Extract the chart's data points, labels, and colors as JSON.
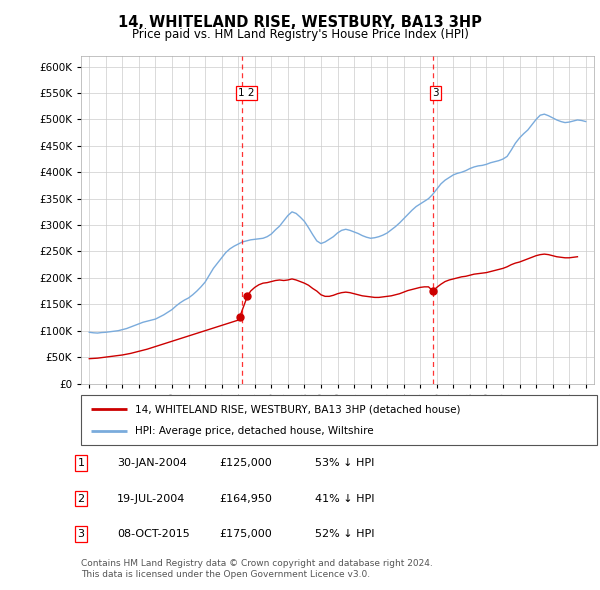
{
  "title": "14, WHITELAND RISE, WESTBURY, BA13 3HP",
  "subtitle": "Price paid vs. HM Land Registry's House Price Index (HPI)",
  "legend_line1": "14, WHITELAND RISE, WESTBURY, BA13 3HP (detached house)",
  "legend_line2": "HPI: Average price, detached house, Wiltshire",
  "footer1": "Contains HM Land Registry data © Crown copyright and database right 2024.",
  "footer2": "This data is licensed under the Open Government Licence v3.0.",
  "table": [
    {
      "num": "1",
      "date": "30-JAN-2004",
      "price": "£125,000",
      "pct": "53% ↓ HPI"
    },
    {
      "num": "2",
      "date": "19-JUL-2004",
      "price": "£164,950",
      "pct": "41% ↓ HPI"
    },
    {
      "num": "3",
      "date": "08-OCT-2015",
      "price": "£175,000",
      "pct": "52% ↓ HPI"
    }
  ],
  "hpi_color": "#7aabdc",
  "price_color": "#cc0000",
  "marker1_x": 2004.08,
  "marker1_y": 125000,
  "marker2_x": 2004.55,
  "marker2_y": 164950,
  "marker3_x": 2015.77,
  "marker3_y": 175000,
  "vline1_x": 2004.25,
  "vline2_x": 2015.8,
  "ylim": [
    0,
    620000
  ],
  "yticks": [
    0,
    50000,
    100000,
    150000,
    200000,
    250000,
    300000,
    350000,
    400000,
    450000,
    500000,
    550000,
    600000
  ],
  "xlim_min": 1994.5,
  "xlim_max": 2025.5,
  "hpi_data": [
    [
      1995.0,
      97000
    ],
    [
      1995.25,
      96000
    ],
    [
      1995.5,
      95500
    ],
    [
      1995.75,
      96500
    ],
    [
      1996.0,
      97000
    ],
    [
      1996.25,
      98000
    ],
    [
      1996.5,
      99000
    ],
    [
      1996.75,
      100000
    ],
    [
      1997.0,
      102000
    ],
    [
      1997.25,
      104000
    ],
    [
      1997.5,
      107000
    ],
    [
      1997.75,
      110000
    ],
    [
      1998.0,
      113000
    ],
    [
      1998.25,
      116000
    ],
    [
      1998.5,
      118000
    ],
    [
      1998.75,
      120000
    ],
    [
      1999.0,
      122000
    ],
    [
      1999.25,
      126000
    ],
    [
      1999.5,
      130000
    ],
    [
      1999.75,
      135000
    ],
    [
      2000.0,
      140000
    ],
    [
      2000.25,
      147000
    ],
    [
      2000.5,
      153000
    ],
    [
      2000.75,
      158000
    ],
    [
      2001.0,
      162000
    ],
    [
      2001.25,
      168000
    ],
    [
      2001.5,
      175000
    ],
    [
      2001.75,
      183000
    ],
    [
      2002.0,
      192000
    ],
    [
      2002.25,
      205000
    ],
    [
      2002.5,
      218000
    ],
    [
      2002.75,
      228000
    ],
    [
      2003.0,
      238000
    ],
    [
      2003.25,
      248000
    ],
    [
      2003.5,
      255000
    ],
    [
      2003.75,
      260000
    ],
    [
      2004.0,
      264000
    ],
    [
      2004.25,
      268000
    ],
    [
      2004.5,
      270000
    ],
    [
      2004.75,
      272000
    ],
    [
      2005.0,
      273000
    ],
    [
      2005.25,
      274000
    ],
    [
      2005.5,
      275000
    ],
    [
      2005.75,
      278000
    ],
    [
      2006.0,
      283000
    ],
    [
      2006.25,
      291000
    ],
    [
      2006.5,
      298000
    ],
    [
      2006.75,
      308000
    ],
    [
      2007.0,
      318000
    ],
    [
      2007.25,
      325000
    ],
    [
      2007.5,
      322000
    ],
    [
      2007.75,
      315000
    ],
    [
      2008.0,
      307000
    ],
    [
      2008.25,
      295000
    ],
    [
      2008.5,
      282000
    ],
    [
      2008.75,
      270000
    ],
    [
      2009.0,
      265000
    ],
    [
      2009.25,
      268000
    ],
    [
      2009.5,
      273000
    ],
    [
      2009.75,
      278000
    ],
    [
      2010.0,
      285000
    ],
    [
      2010.25,
      290000
    ],
    [
      2010.5,
      292000
    ],
    [
      2010.75,
      290000
    ],
    [
      2011.0,
      287000
    ],
    [
      2011.25,
      284000
    ],
    [
      2011.5,
      280000
    ],
    [
      2011.75,
      277000
    ],
    [
      2012.0,
      275000
    ],
    [
      2012.25,
      276000
    ],
    [
      2012.5,
      278000
    ],
    [
      2012.75,
      281000
    ],
    [
      2013.0,
      285000
    ],
    [
      2013.25,
      291000
    ],
    [
      2013.5,
      297000
    ],
    [
      2013.75,
      304000
    ],
    [
      2014.0,
      312000
    ],
    [
      2014.25,
      320000
    ],
    [
      2014.5,
      328000
    ],
    [
      2014.75,
      335000
    ],
    [
      2015.0,
      340000
    ],
    [
      2015.25,
      345000
    ],
    [
      2015.5,
      350000
    ],
    [
      2015.75,
      358000
    ],
    [
      2016.0,
      368000
    ],
    [
      2016.25,
      378000
    ],
    [
      2016.5,
      385000
    ],
    [
      2016.75,
      390000
    ],
    [
      2017.0,
      395000
    ],
    [
      2017.25,
      398000
    ],
    [
      2017.5,
      400000
    ],
    [
      2017.75,
      403000
    ],
    [
      2018.0,
      407000
    ],
    [
      2018.25,
      410000
    ],
    [
      2018.5,
      412000
    ],
    [
      2018.75,
      413000
    ],
    [
      2019.0,
      415000
    ],
    [
      2019.25,
      418000
    ],
    [
      2019.5,
      420000
    ],
    [
      2019.75,
      422000
    ],
    [
      2020.0,
      425000
    ],
    [
      2020.25,
      430000
    ],
    [
      2020.5,
      442000
    ],
    [
      2020.75,
      455000
    ],
    [
      2021.0,
      465000
    ],
    [
      2021.25,
      473000
    ],
    [
      2021.5,
      480000
    ],
    [
      2021.75,
      490000
    ],
    [
      2022.0,
      500000
    ],
    [
      2022.25,
      508000
    ],
    [
      2022.5,
      510000
    ],
    [
      2022.75,
      507000
    ],
    [
      2023.0,
      503000
    ],
    [
      2023.25,
      499000
    ],
    [
      2023.5,
      496000
    ],
    [
      2023.75,
      494000
    ],
    [
      2024.0,
      495000
    ],
    [
      2024.25,
      497000
    ],
    [
      2024.5,
      499000
    ],
    [
      2024.75,
      498000
    ],
    [
      2025.0,
      496000
    ]
  ],
  "price_data": [
    [
      1995.0,
      47000
    ],
    [
      1995.5,
      48000
    ],
    [
      1996.0,
      50000
    ],
    [
      1996.5,
      52000
    ],
    [
      1997.0,
      54000
    ],
    [
      1997.5,
      57000
    ],
    [
      1998.0,
      61000
    ],
    [
      1998.5,
      65000
    ],
    [
      1999.0,
      70000
    ],
    [
      1999.5,
      75000
    ],
    [
      2000.0,
      80000
    ],
    [
      2000.5,
      85000
    ],
    [
      2001.0,
      90000
    ],
    [
      2001.5,
      95000
    ],
    [
      2002.0,
      100000
    ],
    [
      2002.5,
      105000
    ],
    [
      2003.0,
      110000
    ],
    [
      2003.5,
      115000
    ],
    [
      2004.0,
      120000
    ],
    [
      2004.08,
      125000
    ],
    [
      2004.55,
      164950
    ],
    [
      2004.75,
      175000
    ],
    [
      2005.0,
      182000
    ],
    [
      2005.25,
      187000
    ],
    [
      2005.5,
      190000
    ],
    [
      2005.75,
      191000
    ],
    [
      2006.0,
      193000
    ],
    [
      2006.25,
      195000
    ],
    [
      2006.5,
      196000
    ],
    [
      2006.75,
      195000
    ],
    [
      2007.0,
      196000
    ],
    [
      2007.25,
      198000
    ],
    [
      2007.5,
      196000
    ],
    [
      2007.75,
      193000
    ],
    [
      2008.0,
      190000
    ],
    [
      2008.25,
      186000
    ],
    [
      2008.5,
      180000
    ],
    [
      2008.75,
      175000
    ],
    [
      2009.0,
      168000
    ],
    [
      2009.25,
      165000
    ],
    [
      2009.5,
      165000
    ],
    [
      2009.75,
      167000
    ],
    [
      2010.0,
      170000
    ],
    [
      2010.25,
      172000
    ],
    [
      2010.5,
      173000
    ],
    [
      2010.75,
      172000
    ],
    [
      2011.0,
      170000
    ],
    [
      2011.25,
      168000
    ],
    [
      2011.5,
      166000
    ],
    [
      2011.75,
      165000
    ],
    [
      2012.0,
      164000
    ],
    [
      2012.25,
      163000
    ],
    [
      2012.5,
      163000
    ],
    [
      2012.75,
      164000
    ],
    [
      2013.0,
      165000
    ],
    [
      2013.25,
      166000
    ],
    [
      2013.5,
      168000
    ],
    [
      2013.75,
      170000
    ],
    [
      2014.0,
      173000
    ],
    [
      2014.25,
      176000
    ],
    [
      2014.5,
      178000
    ],
    [
      2014.75,
      180000
    ],
    [
      2015.0,
      182000
    ],
    [
      2015.25,
      183000
    ],
    [
      2015.5,
      183000
    ],
    [
      2015.77,
      175000
    ],
    [
      2016.0,
      182000
    ],
    [
      2016.25,
      188000
    ],
    [
      2016.5,
      193000
    ],
    [
      2016.75,
      196000
    ],
    [
      2017.0,
      198000
    ],
    [
      2017.25,
      200000
    ],
    [
      2017.5,
      202000
    ],
    [
      2017.75,
      203000
    ],
    [
      2018.0,
      205000
    ],
    [
      2018.25,
      207000
    ],
    [
      2018.5,
      208000
    ],
    [
      2018.75,
      209000
    ],
    [
      2019.0,
      210000
    ],
    [
      2019.25,
      212000
    ],
    [
      2019.5,
      214000
    ],
    [
      2019.75,
      216000
    ],
    [
      2020.0,
      218000
    ],
    [
      2020.25,
      221000
    ],
    [
      2020.5,
      225000
    ],
    [
      2020.75,
      228000
    ],
    [
      2021.0,
      230000
    ],
    [
      2021.25,
      233000
    ],
    [
      2021.5,
      236000
    ],
    [
      2021.75,
      239000
    ],
    [
      2022.0,
      242000
    ],
    [
      2022.25,
      244000
    ],
    [
      2022.5,
      245000
    ],
    [
      2022.75,
      244000
    ],
    [
      2023.0,
      242000
    ],
    [
      2023.25,
      240000
    ],
    [
      2023.5,
      239000
    ],
    [
      2023.75,
      238000
    ],
    [
      2024.0,
      238000
    ],
    [
      2024.25,
      239000
    ],
    [
      2024.5,
      240000
    ]
  ]
}
